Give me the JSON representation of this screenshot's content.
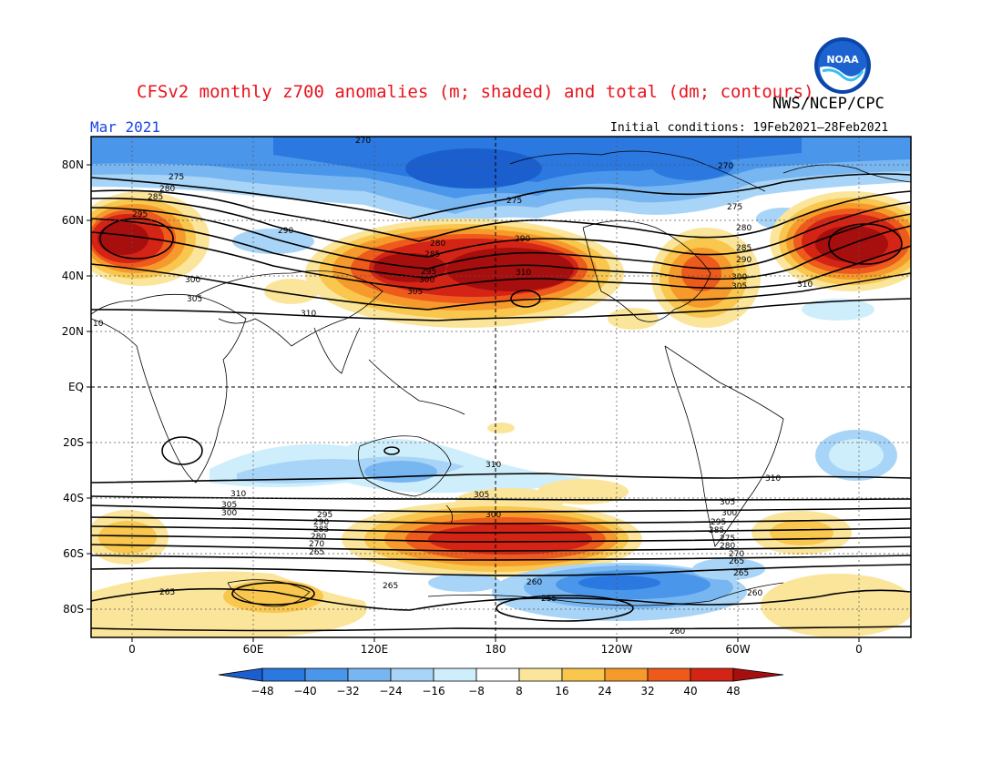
{
  "title": "CFSv2 monthly z700 anomalies (m; shaded) and total (dm; contours)",
  "agency": "NWS/NCEP/CPC",
  "month_label": "Mar 2021",
  "initial_conditions": "Initial conditions: 19Feb2021–28Feb2021",
  "logo_text": "NOAA",
  "lat_labels": [
    "80N",
    "60N",
    "40N",
    "20N",
    "EQ",
    "20S",
    "40S",
    "60S",
    "80S"
  ],
  "lon_labels": [
    "0",
    "60E",
    "120E",
    "180",
    "120W",
    "60W",
    "0"
  ],
  "colorbar": {
    "labels": [
      "−48",
      "−40",
      "−32",
      "−24",
      "−16",
      "−8",
      "8",
      "16",
      "24",
      "32",
      "40",
      "48"
    ],
    "colors": [
      "#1b5fcf",
      "#2a78e0",
      "#4a96ea",
      "#78b6f2",
      "#a8d5f7",
      "#cfeefb",
      "#ffffff",
      "#fbe59a",
      "#f9c64e",
      "#f69a2c",
      "#ee5a1c",
      "#d42415",
      "#a70e0e"
    ]
  },
  "contour_labels": [
    "270",
    "275",
    "280",
    "285",
    "290",
    "295",
    "300",
    "305",
    "310",
    "270",
    "275",
    "280",
    "285",
    "290",
    "300",
    "305",
    "310",
    "275",
    "280",
    "285",
    "290",
    "295",
    "300",
    "305",
    "310",
    "310",
    "305",
    "300",
    "295",
    "290",
    "285",
    "280",
    "275",
    "270",
    "265",
    "265",
    "260",
    "255",
    "260",
    "265",
    "310",
    "300",
    "305",
    "265",
    "260",
    "10"
  ]
}
